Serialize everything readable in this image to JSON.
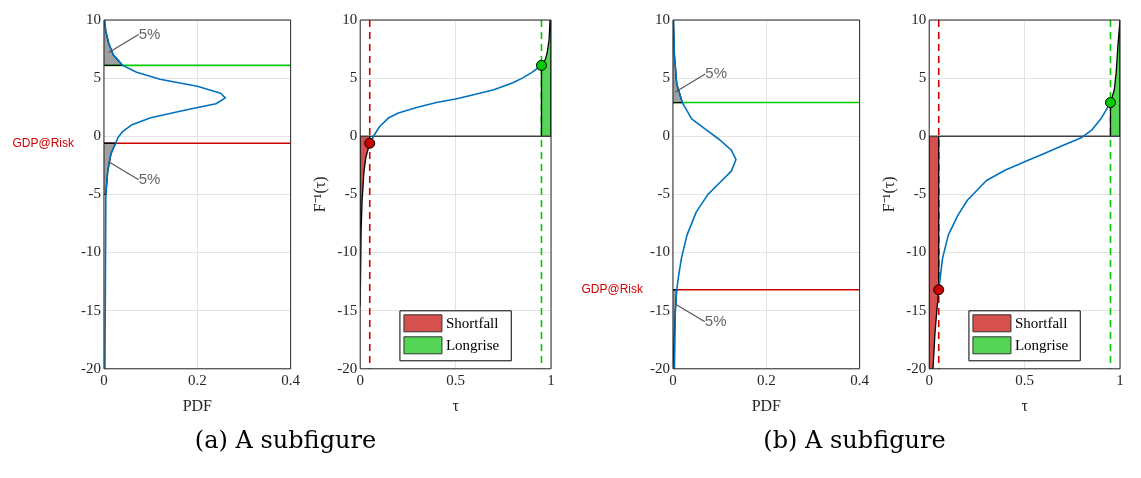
{
  "chart_data": [
    {
      "type": "line",
      "xlabel": "PDF",
      "xlim": [
        0,
        0.4
      ],
      "xticks": [
        0,
        0.2,
        0.4
      ],
      "ylim": [
        -20,
        10
      ],
      "yticks": [
        -20,
        -15,
        -10,
        -5,
        0,
        5,
        10
      ],
      "grid": true,
      "series": [
        {
          "type": "area",
          "color": "#a0a0a0",
          "x": [
            0,
            0.04,
            0.02,
            0.01,
            0.004,
            0.001,
            0
          ],
          "values": [
            6.1,
            6.1,
            7,
            8,
            9,
            10,
            10
          ]
        },
        {
          "type": "area",
          "color": "#a0a0a0",
          "x": [
            0,
            0.025,
            0.015,
            0.008,
            0.004,
            0
          ],
          "values": [
            -0.6,
            -0.6,
            -1.5,
            -3,
            -5,
            -5
          ]
        },
        {
          "color": "#0072bd",
          "x": [
            0.001,
            0.004,
            0.01,
            0.02,
            0.04,
            0.07,
            0.12,
            0.2,
            0.25,
            0.26,
            0.24,
            0.18,
            0.1,
            0.06,
            0.04,
            0.03,
            0.025,
            0.015,
            0.008,
            0.004,
            0.002
          ],
          "values": [
            10,
            9,
            8,
            7,
            6.1,
            5.5,
            4.9,
            4.3,
            3.7,
            3.3,
            2.8,
            2.3,
            1.6,
            1,
            0.4,
            -0.1,
            -0.6,
            -1.5,
            -3,
            -5,
            -20
          ]
        }
      ],
      "ref_lines": [
        {
          "axis": "y",
          "value": 6.1,
          "color": "#00cc00"
        },
        {
          "axis": "y",
          "value": -0.6,
          "label": "GDP@Risk",
          "color": "#cc0000"
        }
      ],
      "annotations": [
        {
          "text": "5%",
          "x": 0.01,
          "y": 7.2
        },
        {
          "text": "5%",
          "x": 0.01,
          "y": -2.2
        },
        "(a) A subfigure"
      ]
    },
    {
      "type": "line",
      "xlabel": "τ",
      "ylabel": "F⁻¹(τ)",
      "xlim": [
        0,
        1
      ],
      "xticks": [
        0,
        0.5,
        1
      ],
      "ylim": [
        -20,
        10
      ],
      "yticks": [
        -20,
        -15,
        -10,
        -5,
        0,
        5,
        10
      ],
      "grid": true,
      "legend": "bottom",
      "series": [
        {
          "type": "area",
          "name": "Shortfall",
          "color": "#d65050",
          "x": [
            0,
            0,
            0.005,
            0.01,
            0.02,
            0.03,
            0.05,
            0.05
          ],
          "values": [
            0,
            -14.6,
            -8,
            -5.5,
            -3,
            -1.8,
            -0.6,
            0
          ]
        },
        {
          "type": "area",
          "name": "Longrise",
          "color": "#55d455",
          "x": [
            0.95,
            0.95,
            0.97,
            0.98,
            0.99,
            0.995,
            1,
            1
          ],
          "values": [
            0,
            6.1,
            6.6,
            7.2,
            8.3,
            10,
            10,
            0
          ]
        },
        {
          "color": "#0072bd",
          "x": [
            0.05,
            0.07,
            0.1,
            0.15,
            0.2,
            0.3,
            0.4,
            0.5,
            0.6,
            0.7,
            0.8,
            0.85,
            0.9,
            0.95
          ],
          "values": [
            -0.6,
            0,
            0.8,
            1.6,
            2,
            2.5,
            2.9,
            3.2,
            3.6,
            4,
            4.6,
            5,
            5.5,
            6.1
          ]
        },
        {
          "type": "scatter",
          "color": "#cc0000",
          "marker": "circle",
          "x": [
            0.05
          ],
          "values": [
            -0.6
          ]
        },
        {
          "type": "scatter",
          "color": "#00cc00",
          "marker": "circle",
          "x": [
            0.95
          ],
          "values": [
            6.1
          ]
        }
      ],
      "ref_lines": [
        {
          "axis": "y",
          "value": 0,
          "color": "#404040"
        },
        {
          "axis": "x",
          "value": 0.05,
          "color": "#cc0000",
          "line_style": "dashed"
        },
        {
          "axis": "x",
          "value": 0.95,
          "color": "#00cc00",
          "line_style": "dashed"
        }
      ]
    },
    {
      "type": "line",
      "xlabel": "PDF",
      "xlim": [
        0,
        0.4
      ],
      "xticks": [
        0,
        0.2,
        0.4
      ],
      "ylim": [
        -20,
        10
      ],
      "yticks": [
        -20,
        -15,
        -10,
        -5,
        0,
        5,
        10
      ],
      "grid": true,
      "series": [
        {
          "type": "area",
          "color": "#a0a0a0",
          "x": [
            0,
            0.02,
            0.008,
            0.003,
            0.001,
            0
          ],
          "values": [
            2.9,
            2.9,
            4.5,
            7,
            10,
            10
          ]
        },
        {
          "type": "area",
          "color": "#a0a0a0",
          "x": [
            0,
            0.008,
            0.005,
            0.002,
            0
          ],
          "values": [
            -13.2,
            -13.2,
            -15,
            -18,
            -20
          ]
        },
        {
          "color": "#0072bd",
          "x": [
            0.001,
            0.003,
            0.008,
            0.02,
            0.04,
            0.07,
            0.1,
            0.125,
            0.135,
            0.125,
            0.1,
            0.075,
            0.05,
            0.03,
            0.018,
            0.012,
            0.008,
            0.005,
            0.004,
            0.003
          ],
          "values": [
            10,
            7,
            4.5,
            2.9,
            1.5,
            0.6,
            -0.3,
            -1.2,
            -2,
            -3,
            -4,
            -5,
            -6.5,
            -8.5,
            -10.5,
            -12,
            -13.2,
            -15,
            -18,
            -20
          ]
        }
      ],
      "ref_lines": [
        {
          "axis": "y",
          "value": 2.9,
          "color": "#00cc00"
        },
        {
          "axis": "y",
          "value": -13.2,
          "label": "GDP@Risk",
          "color": "#cc0000"
        }
      ],
      "annotations": [
        {
          "text": "5%",
          "x": 0.005,
          "y": 3.8
        },
        {
          "text": "5%",
          "x": 0.004,
          "y": -14.4
        },
        "(b) A subfigure"
      ]
    },
    {
      "type": "line",
      "xlabel": "τ",
      "ylabel": "F⁻¹(τ)",
      "xlim": [
        0,
        1
      ],
      "xticks": [
        0,
        0.5,
        1
      ],
      "ylim": [
        -20,
        10
      ],
      "yticks": [
        -20,
        -15,
        -10,
        -5,
        0,
        5,
        10
      ],
      "grid": true,
      "legend": "bottom",
      "series": [
        {
          "type": "area",
          "name": "Shortfall",
          "color": "#d65050",
          "x": [
            0,
            0,
            0.02,
            0.03,
            0.04,
            0.05,
            0.05
          ],
          "values": [
            0,
            -20,
            -20,
            -17,
            -15,
            -13.2,
            0
          ]
        },
        {
          "type": "area",
          "name": "Longrise",
          "color": "#55d455",
          "x": [
            0.95,
            0.95,
            0.97,
            0.98,
            0.99,
            1,
            1
          ],
          "values": [
            0,
            2.9,
            4,
            5.5,
            8,
            10,
            0
          ]
        },
        {
          "color": "#0072bd",
          "x": [
            0.05,
            0.07,
            0.1,
            0.15,
            0.2,
            0.3,
            0.4,
            0.5,
            0.6,
            0.7,
            0.8,
            0.85,
            0.9,
            0.95
          ],
          "values": [
            -13.2,
            -10.5,
            -8.5,
            -6.8,
            -5.5,
            -3.8,
            -2.9,
            -2.2,
            -1.5,
            -0.8,
            -0.1,
            0.5,
            1.5,
            2.9
          ]
        },
        {
          "type": "scatter",
          "color": "#cc0000",
          "marker": "circle",
          "x": [
            0.05
          ],
          "values": [
            -13.2
          ]
        },
        {
          "type": "scatter",
          "color": "#00cc00",
          "marker": "circle",
          "x": [
            0.95
          ],
          "values": [
            2.9
          ]
        }
      ],
      "ref_lines": [
        {
          "axis": "y",
          "value": 0,
          "color": "#404040"
        },
        {
          "axis": "x",
          "value": 0.05,
          "color": "#cc0000",
          "line_style": "dashed"
        },
        {
          "axis": "x",
          "value": 0.95,
          "color": "#00cc00",
          "line_style": "dashed"
        }
      ]
    }
  ]
}
